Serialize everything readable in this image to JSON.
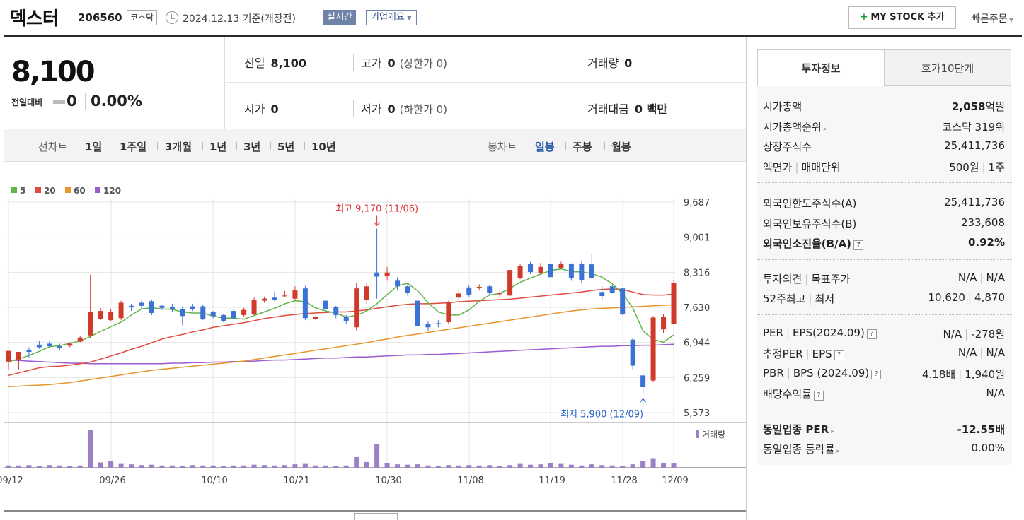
{
  "header": {
    "stock_name": "덱스터",
    "stock_code": "206560",
    "market": "코스닥",
    "date_text": "2024.12.13  기준(개장전)",
    "realtime_label": "실시간",
    "company_overview_label": "기업개요",
    "mystock_label": "MY STOCK 추가",
    "quick_order_label": "빠른주문"
  },
  "price": {
    "current": "8,100",
    "change_label": "전일대비",
    "change_value": "0",
    "change_percent": "0.00%",
    "prev_close_label": "전일",
    "prev_close": "8,100",
    "high_label": "고가",
    "high": "0",
    "high_sub": "(상한가 0)",
    "volume_label": "거래량",
    "volume": "0",
    "open_label": "시가",
    "open": "0",
    "low_label": "저가",
    "low": "0",
    "low_sub": "(하한가 0)",
    "amount_label": "거래대금",
    "amount": "0 백만"
  },
  "period_bar": {
    "line_chart_label": "선차트",
    "line_periods": [
      "1일",
      "1주일",
      "3개월",
      "1년",
      "3년",
      "5년",
      "10년"
    ],
    "candle_chart_label": "봉차트",
    "candle_periods": [
      "일봉",
      "주봉",
      "월봉"
    ],
    "active_candle_period": "일봉"
  },
  "chart_data": {
    "type": "candlestick",
    "legend": [
      {
        "name": "5",
        "color": "#62b34a"
      },
      {
        "name": "20",
        "color": "#e04b3f"
      },
      {
        "name": "60",
        "color": "#e8962c"
      },
      {
        "name": "120",
        "color": "#9b5cd0"
      }
    ],
    "y_ticks": [
      "9,687",
      "9,001",
      "8,316",
      "7,630",
      "6,944",
      "6,259",
      "5,573"
    ],
    "ylim": [
      5573,
      9687
    ],
    "x_ticks": [
      "09/12",
      "09/26",
      "10/10",
      "10/21",
      "10/30",
      "11/08",
      "11/19",
      "11/28",
      "12/09"
    ],
    "up_color": "#cf3a2a",
    "down_color": "#3a72d6",
    "high_annotation": "최고 9,170 (11/06)",
    "low_annotation": "최저 5,900 (12/09)",
    "volume_label": "거래량",
    "candles": [
      [
        6570,
        6780,
        6560,
        6400
      ],
      [
        6610,
        6760,
        6640,
        6420
      ],
      [
        6800,
        6760,
        6850,
        6640
      ],
      [
        6900,
        6850,
        6980,
        6820
      ],
      [
        6920,
        6870,
        6980,
        6850
      ],
      [
        6870,
        6840,
        6920,
        6800
      ],
      [
        6880,
        6920,
        6950,
        6850
      ],
      [
        6960,
        7040,
        7080,
        6950
      ],
      [
        7080,
        7540,
        8270,
        7030
      ],
      [
        7400,
        7560,
        7620,
        7380
      ],
      [
        7380,
        7540,
        7600,
        7360
      ],
      [
        7420,
        7720,
        7760,
        7380
      ],
      [
        7660,
        7640,
        7700,
        7560
      ],
      [
        7720,
        7660,
        7760,
        7600
      ],
      [
        7750,
        7520,
        7770,
        7480
      ],
      [
        7660,
        7620,
        7680,
        7580
      ],
      [
        7630,
        7590,
        7700,
        7540
      ],
      [
        7590,
        7460,
        7650,
        7280
      ],
      [
        7650,
        7600,
        7700,
        7560
      ],
      [
        7650,
        7400,
        7680,
        7380
      ],
      [
        7540,
        7460,
        7560,
        7420
      ],
      [
        7480,
        7360,
        7490,
        7340
      ],
      [
        7560,
        7420,
        7600,
        7400
      ],
      [
        7480,
        7580,
        7620,
        7450
      ],
      [
        7500,
        7780,
        7820,
        7480
      ],
      [
        7760,
        7800,
        7840,
        7720
      ],
      [
        7820,
        7770,
        7940,
        7750
      ],
      [
        7860,
        7860,
        7950,
        7830
      ],
      [
        7800,
        7960,
        8040,
        7780
      ],
      [
        8000,
        7420,
        8050,
        7380
      ],
      [
        7400,
        7440,
        7460,
        7390
      ],
      [
        7760,
        7600,
        7790,
        7520
      ],
      [
        7640,
        7480,
        7660,
        7420
      ],
      [
        7440,
        7360,
        7480,
        7300
      ],
      [
        7240,
        8000,
        8100,
        7180
      ],
      [
        7780,
        8040,
        8110,
        7700
      ],
      [
        8310,
        8230,
        9170,
        7800
      ],
      [
        8240,
        8310,
        8420,
        8150
      ],
      [
        8150,
        8040,
        8220,
        7980
      ],
      [
        8040,
        7920,
        8100,
        7860
      ],
      [
        7760,
        7270,
        7790,
        7220
      ],
      [
        7300,
        7240,
        7360,
        7160
      ],
      [
        7320,
        7300,
        7380,
        7240
      ],
      [
        7340,
        7720,
        7760,
        7300
      ],
      [
        7820,
        7900,
        7960,
        7780
      ],
      [
        8020,
        7880,
        8060,
        7840
      ],
      [
        8010,
        8030,
        8080,
        7960
      ],
      [
        8040,
        7920,
        8060,
        7880
      ],
      [
        7900,
        7900,
        7950,
        7820
      ],
      [
        7860,
        8360,
        8410,
        7840
      ],
      [
        8200,
        8440,
        8480,
        8180
      ],
      [
        8480,
        8320,
        8520,
        8280
      ],
      [
        8300,
        8420,
        8500,
        8260
      ],
      [
        8480,
        8220,
        8550,
        8200
      ],
      [
        8400,
        8480,
        8520,
        8380
      ],
      [
        8480,
        8200,
        8490,
        8150
      ],
      [
        8480,
        8160,
        8520,
        8100
      ],
      [
        8470,
        8200,
        8680,
        8190
      ],
      [
        7930,
        7850,
        8040,
        7760
      ],
      [
        8040,
        7920,
        8060,
        7900
      ],
      [
        8000,
        7500,
        8010,
        7480
      ],
      [
        7000,
        6490,
        7030,
        6420
      ],
      [
        6300,
        6070,
        6380,
        5900
      ],
      [
        6200,
        7430,
        7460,
        6180
      ],
      [
        7200,
        7440,
        7500,
        7120
      ],
      [
        7310,
        8100,
        8160,
        7300
      ]
    ],
    "volumes": [
      0.06,
      0.06,
      0.07,
      0.05,
      0.07,
      0.06,
      0.05,
      0.06,
      1.0,
      0.14,
      0.18,
      0.1,
      0.09,
      0.07,
      0.08,
      0.06,
      0.06,
      0.05,
      0.07,
      0.06,
      0.06,
      0.05,
      0.06,
      0.06,
      0.08,
      0.07,
      0.06,
      0.07,
      0.09,
      0.1,
      0.06,
      0.06,
      0.05,
      0.06,
      0.28,
      0.15,
      0.62,
      0.12,
      0.09,
      0.08,
      0.09,
      0.06,
      0.05,
      0.07,
      0.06,
      0.07,
      0.06,
      0.07,
      0.05,
      0.07,
      0.1,
      0.08,
      0.09,
      0.12,
      0.1,
      0.08,
      0.06,
      0.09,
      0.07,
      0.06,
      0.05,
      0.09,
      0.17,
      0.25,
      0.12,
      0.11
    ],
    "ma5": [
      6570,
      6620,
      6690,
      6770,
      6860,
      6880,
      6930,
      6970,
      7060,
      7160,
      7250,
      7340,
      7480,
      7600,
      7620,
      7600,
      7590,
      7540,
      7520,
      7520,
      7460,
      7420,
      7420,
      7400,
      7470,
      7540,
      7610,
      7700,
      7760,
      7740,
      7620,
      7560,
      7520,
      7440,
      7470,
      7560,
      7700,
      7880,
      8050,
      8100,
      7950,
      7720,
      7540,
      7480,
      7480,
      7580,
      7750,
      7870,
      7900,
      8000,
      8120,
      8200,
      8280,
      8350,
      8380,
      8330,
      8320,
      8290,
      8220,
      8090,
      7900,
      7620,
      7170,
      7000,
      6950,
      7090
    ],
    "ma20": [
      6300,
      6350,
      6400,
      6450,
      6470,
      6480,
      6500,
      6530,
      6560,
      6620,
      6680,
      6740,
      6810,
      6870,
      6940,
      7010,
      7060,
      7100,
      7150,
      7190,
      7240,
      7270,
      7300,
      7330,
      7370,
      7410,
      7440,
      7470,
      7490,
      7510,
      7520,
      7530,
      7540,
      7540,
      7560,
      7580,
      7610,
      7640,
      7670,
      7690,
      7700,
      7700,
      7710,
      7720,
      7740,
      7750,
      7760,
      7770,
      7780,
      7790,
      7810,
      7830,
      7850,
      7870,
      7890,
      7910,
      7930,
      7960,
      7980,
      7990,
      7980,
      7930,
      7880,
      7870,
      7870,
      7890
    ],
    "ma60": [
      6080,
      6090,
      6100,
      6110,
      6120,
      6140,
      6160,
      6190,
      6220,
      6250,
      6280,
      6310,
      6340,
      6370,
      6400,
      6420,
      6440,
      6460,
      6480,
      6500,
      6520,
      6540,
      6560,
      6580,
      6610,
      6640,
      6670,
      6700,
      6730,
      6760,
      6790,
      6820,
      6850,
      6880,
      6910,
      6940,
      6980,
      7010,
      7050,
      7080,
      7110,
      7140,
      7170,
      7200,
      7230,
      7260,
      7290,
      7320,
      7350,
      7380,
      7410,
      7440,
      7470,
      7500,
      7530,
      7560,
      7580,
      7600,
      7610,
      7620,
      7630,
      7640,
      7650,
      7660,
      7670,
      7680
    ],
    "ma120": [
      6600,
      6590,
      6580,
      6570,
      6560,
      6550,
      6540,
      6540,
      6530,
      6530,
      6530,
      6530,
      6530,
      6530,
      6530,
      6530,
      6540,
      6540,
      6550,
      6550,
      6560,
      6560,
      6570,
      6570,
      6580,
      6590,
      6600,
      6600,
      6610,
      6620,
      6630,
      6640,
      6640,
      6650,
      6660,
      6660,
      6670,
      6680,
      6690,
      6700,
      6700,
      6710,
      6710,
      6720,
      6730,
      6740,
      6750,
      6760,
      6770,
      6780,
      6790,
      6800,
      6810,
      6820,
      6830,
      6840,
      6850,
      6860,
      6870,
      6870,
      6880,
      6880,
      6890,
      6890,
      6900,
      6910
    ]
  },
  "invest_info": {
    "tab_active": "투자정보",
    "tab_other": "호가10단계",
    "market_cap_label": "시가총액",
    "market_cap_value": "2,058",
    "market_cap_unit": "억원",
    "market_cap_rank_label": "시가총액순위",
    "market_cap_rank": "코스닥 319위",
    "shares_label": "상장주식수",
    "shares": "25,411,736",
    "face_value_label": "액면가",
    "trade_unit_label": "매매단위",
    "face_value": "500원",
    "trade_unit": "1주",
    "foreign_limit_label": "외국인한도주식수(A)",
    "foreign_limit": "25,411,736",
    "foreign_hold_label": "외국인보유주식수(B)",
    "foreign_hold": "233,608",
    "foreign_ratio_label": "외국인소진율(B/A)",
    "foreign_ratio": "0.92%",
    "opinion_label": "투자의견",
    "target_label": "목표주가",
    "opinion": "N/A",
    "target": "N/A",
    "week52_high_label": "52주최고",
    "week52_low_label": "최저",
    "week52_high": "10,620",
    "week52_low": "4,870",
    "per_label": "PER",
    "eps_label": "EPS(2024.09)",
    "per": "N/A",
    "eps": "-278원",
    "est_per_label": "추정PER",
    "est_eps_label": "EPS",
    "est_per": "N/A",
    "est_eps": "N/A",
    "pbr_label": "PBR",
    "bps_label": "BPS (2024.09)",
    "pbr": "4.18배",
    "bps": "1,940원",
    "dividend_label": "배당수익률",
    "dividend": "N/A",
    "sector_per_label": "동일업종 PER",
    "sector_per": "-12.55배",
    "sector_change_label": "동일업종 등락률",
    "sector_change": "0.00%"
  }
}
